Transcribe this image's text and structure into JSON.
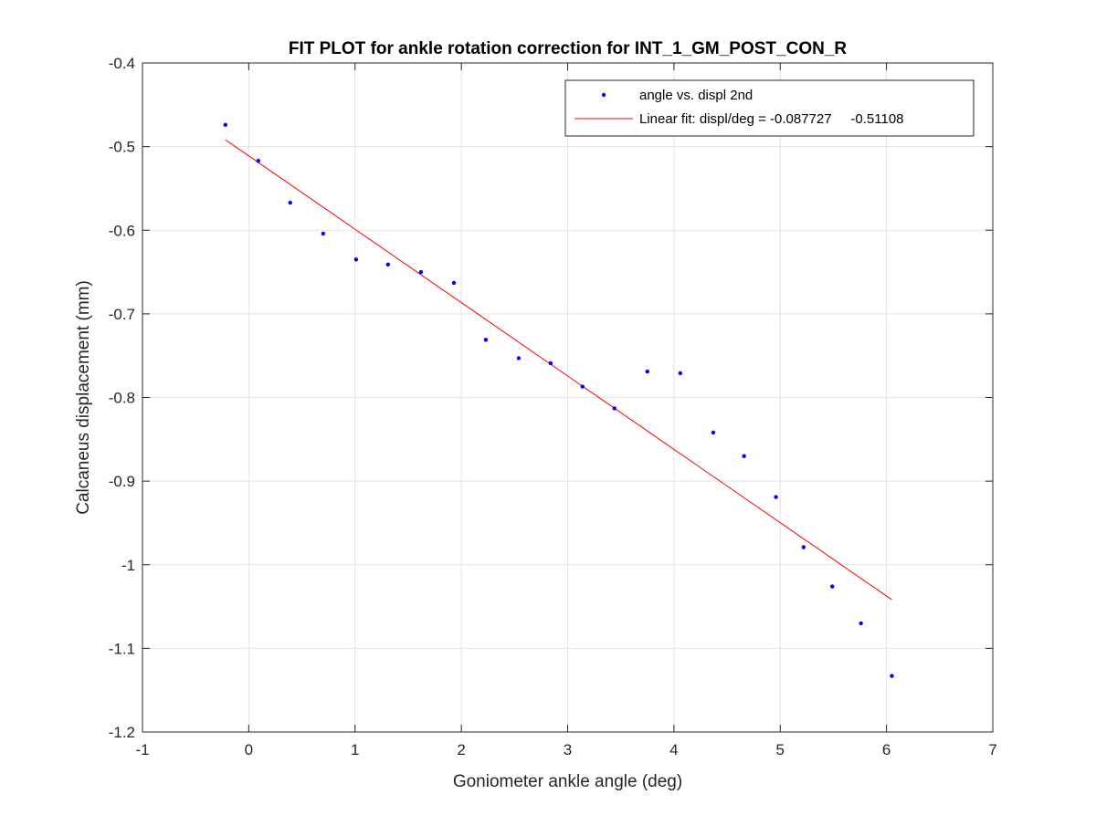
{
  "chart_data": {
    "type": "scatter",
    "title": "FIT PLOT for ankle rotation correction for INT_1_GM_POST_CON_R",
    "xlabel": "Goniometer ankle angle (deg)",
    "ylabel": "Calcaneus displacement (mm)",
    "xlim": [
      -1,
      7
    ],
    "ylim": [
      -1.2,
      -0.4
    ],
    "xticks": [
      -1,
      0,
      1,
      2,
      3,
      4,
      5,
      6,
      7
    ],
    "yticks": [
      -1.2,
      -1.1,
      -1,
      -0.9,
      -0.8,
      -0.7,
      -0.6,
      -0.5,
      -0.4
    ],
    "xtick_labels": [
      "-1",
      "0",
      "1",
      "2",
      "3",
      "4",
      "5",
      "6",
      "7"
    ],
    "ytick_labels": [
      "-1.2",
      "-1.1",
      "-1",
      "-0.9",
      "-0.8",
      "-0.7",
      "-0.6",
      "-0.5",
      "-0.4"
    ],
    "grid": true,
    "legend_position": "top-right",
    "series": [
      {
        "name": "angle vs. displ 2nd",
        "kind": "scatter",
        "color": "#0000ff",
        "x": [
          -0.22,
          0.09,
          0.39,
          0.7,
          1.01,
          1.31,
          1.62,
          1.93,
          2.23,
          2.54,
          2.84,
          3.14,
          3.44,
          3.75,
          4.06,
          4.37,
          4.66,
          4.96,
          5.22,
          5.49,
          5.76,
          6.05
        ],
        "y": [
          -0.474,
          -0.517,
          -0.567,
          -0.604,
          -0.635,
          -0.641,
          -0.65,
          -0.663,
          -0.731,
          -0.753,
          -0.759,
          -0.787,
          -0.813,
          -0.769,
          -0.771,
          -0.842,
          -0.87,
          -0.919,
          -0.979,
          -1.026,
          -1.07,
          -1.133
        ]
      },
      {
        "name": "Linear fit: displ/deg = -0.087727     -0.51108",
        "kind": "line",
        "color": "#ff0000",
        "x": [
          -0.22,
          6.05
        ],
        "y": [
          -0.4918,
          -1.0418
        ]
      }
    ]
  }
}
